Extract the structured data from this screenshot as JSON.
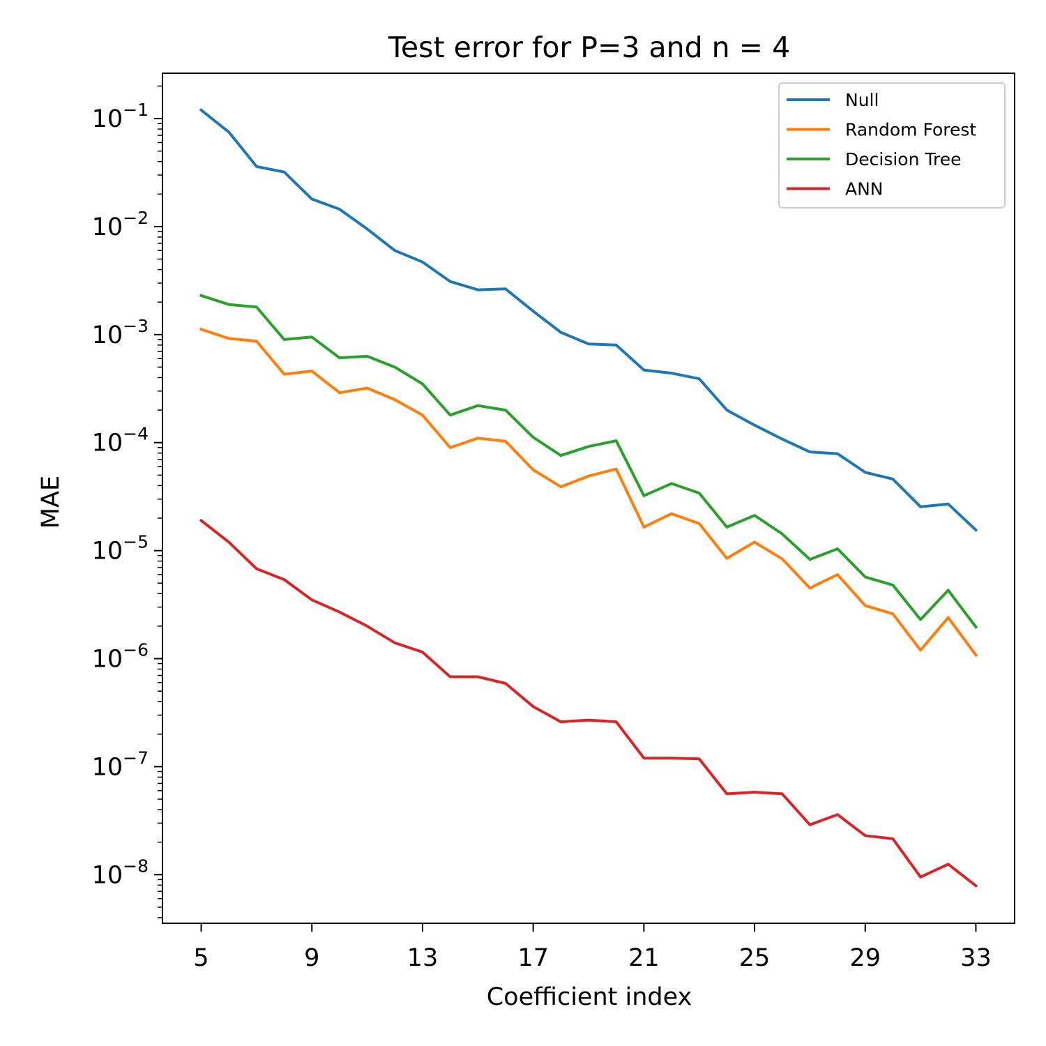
{
  "chart_data": {
    "type": "line",
    "title": "Test error for P=3 and n = 4",
    "xlabel": "Coefficient index",
    "ylabel": "MAE",
    "yscale": "log",
    "xlim": [
      3.6,
      34.4
    ],
    "ylim_exp": [
      -8.45,
      -0.58
    ],
    "xticks": [
      5,
      9,
      13,
      17,
      21,
      25,
      29,
      33
    ],
    "yticks": [
      {
        "exp": -1,
        "label": "10",
        "sup": "−1"
      },
      {
        "exp": -2,
        "label": "10",
        "sup": "−2"
      },
      {
        "exp": -3,
        "label": "10",
        "sup": "−3"
      },
      {
        "exp": -4,
        "label": "10",
        "sup": "−4"
      },
      {
        "exp": -5,
        "label": "10",
        "sup": "−5"
      },
      {
        "exp": -6,
        "label": "10",
        "sup": "−6"
      },
      {
        "exp": -7,
        "label": "10",
        "sup": "−7"
      },
      {
        "exp": -8,
        "label": "10",
        "sup": "−8"
      }
    ],
    "legend_position": "top-right",
    "x": [
      5,
      6,
      7,
      8,
      9,
      10,
      11,
      12,
      13,
      14,
      15,
      16,
      17,
      18,
      19,
      20,
      21,
      22,
      23,
      24,
      25,
      26,
      27,
      28,
      29,
      30,
      31,
      32,
      33
    ],
    "series": [
      {
        "name": "Null",
        "color": "#1f77b4",
        "values": [
          0.12,
          0.075,
          0.036,
          0.032,
          0.018,
          0.0145,
          0.0095,
          0.006,
          0.0047,
          0.0031,
          0.0026,
          0.00265,
          0.00165,
          0.00105,
          0.00082,
          0.0008,
          0.00047,
          0.00044,
          0.00039,
          0.0002,
          0.000145,
          0.000108,
          8.2e-05,
          7.9e-05,
          5.3e-05,
          4.6e-05,
          2.55e-05,
          2.7e-05,
          1.55e-05
        ]
      },
      {
        "name": "Random Forest",
        "color": "#ff7f0e",
        "values": [
          0.00112,
          0.00092,
          0.00087,
          0.00043,
          0.00046,
          0.00029,
          0.00032,
          0.00025,
          0.00018,
          9e-05,
          0.00011,
          0.000103,
          5.6e-05,
          3.9e-05,
          4.9e-05,
          5.7e-05,
          1.65e-05,
          2.2e-05,
          1.78e-05,
          8.5e-06,
          1.2e-05,
          8.4e-06,
          4.5e-06,
          6e-06,
          3.1e-06,
          2.6e-06,
          1.2e-06,
          2.4e-06,
          1.08e-06
        ]
      },
      {
        "name": "Decision Tree",
        "color": "#2ca02c",
        "values": [
          0.0023,
          0.0019,
          0.0018,
          0.0009,
          0.00095,
          0.00061,
          0.00063,
          0.0005,
          0.00035,
          0.00018,
          0.00022,
          0.0002,
          0.000112,
          7.6e-05,
          9.2e-05,
          0.000104,
          3.23e-05,
          4.18e-05,
          3.41e-05,
          1.65e-05,
          2.12e-05,
          1.43e-05,
          8.3e-06,
          1.04e-05,
          5.7e-06,
          4.8e-06,
          2.3e-06,
          4.3e-06,
          1.96e-06
        ]
      },
      {
        "name": "ANN",
        "color": "#d62728",
        "values": [
          1.9e-05,
          1.2e-05,
          6.8e-06,
          5.4e-06,
          3.5e-06,
          2.7e-06,
          2e-06,
          1.4e-06,
          1.15e-06,
          6.8e-07,
          6.8e-07,
          5.9e-07,
          3.6e-07,
          2.6e-07,
          2.7e-07,
          2.6e-07,
          1.2e-07,
          1.2e-07,
          1.18e-07,
          5.6e-08,
          5.8e-08,
          5.6e-08,
          2.9e-08,
          3.6e-08,
          2.3e-08,
          2.15e-08,
          9.5e-09,
          1.25e-08,
          7.9e-09
        ]
      }
    ]
  }
}
